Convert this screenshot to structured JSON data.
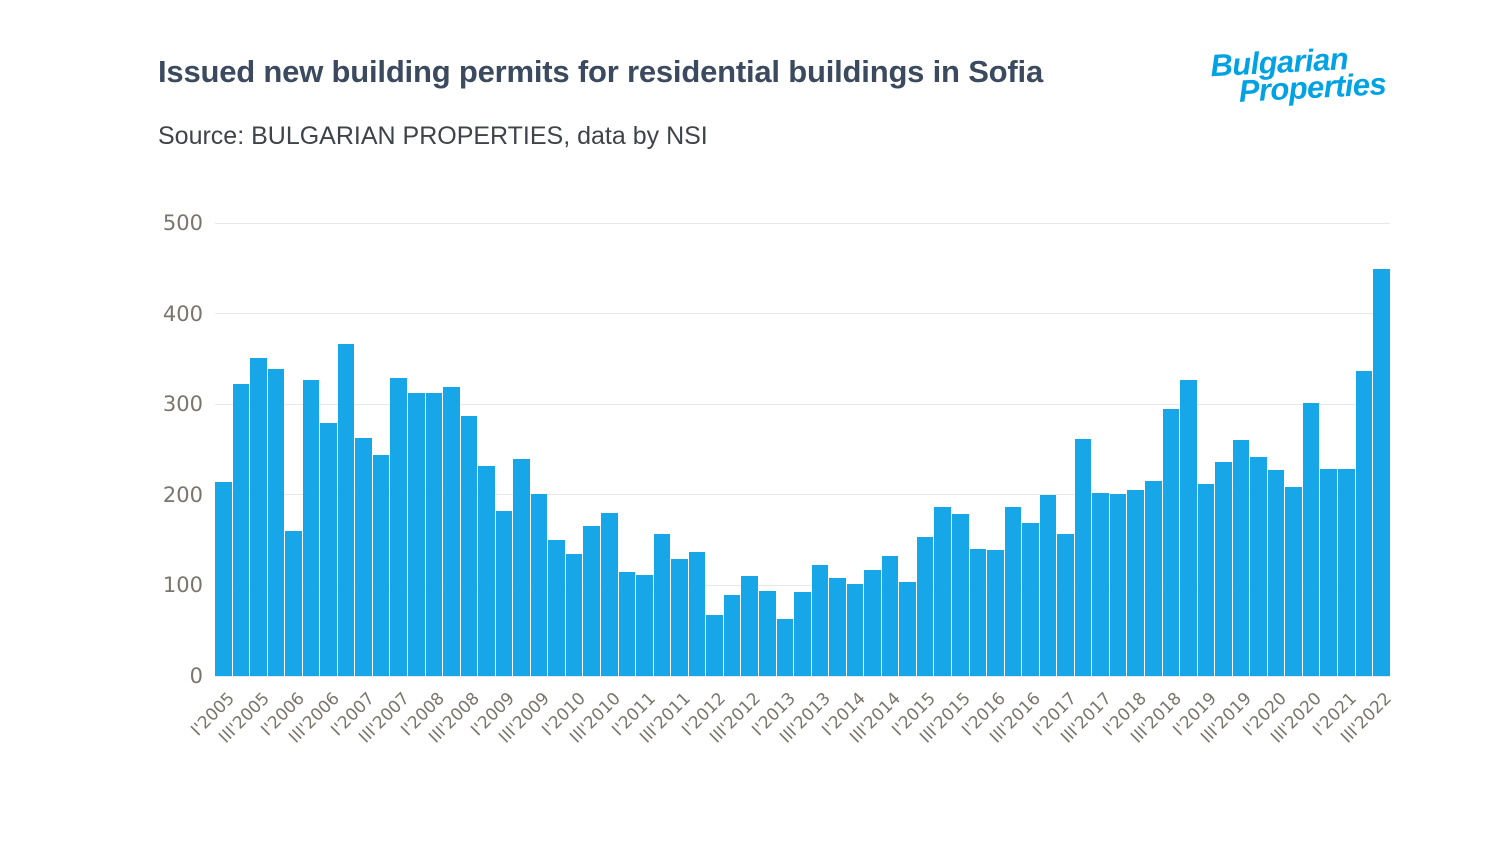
{
  "header": {
    "title": "Issued new building permits for residential buildings in Sofia",
    "source": "Source: BULGARIAN PROPERTIES, data by NSI",
    "logo": {
      "line1": "Bulgarian",
      "line2": "Properties",
      "color": "#00a2e4"
    }
  },
  "chart_data": {
    "type": "bar",
    "title": "Issued new building permits for residential buildings in Sofia",
    "bar_color": "#17a6e8",
    "grid": true,
    "gridline_color": "#e8e8e8",
    "tick_color": "#7b756c",
    "ylim": [
      0,
      500
    ],
    "yticks": [
      0,
      100,
      200,
      300,
      400,
      500
    ],
    "x_label_every_n_bars": 2,
    "x_tick_labels": [
      "I'2005",
      "III'2005",
      "I'2006",
      "III'2006",
      "I'2007",
      "III'2007",
      "I'2008",
      "III'2008",
      "I'2009",
      "III'2009",
      "I'2010",
      "III'2010",
      "I'2011",
      "III'2011",
      "I'2012",
      "III'2012",
      "I'2013",
      "III'2013",
      "I'2014",
      "III'2014",
      "I'2015",
      "III'2015",
      "I'2016",
      "III'2016",
      "I'2017",
      "III'2017",
      "I'2018",
      "III'2018",
      "I'2019",
      "III'2019",
      "I'2020",
      "III'2020",
      "I'2021",
      "III'2022"
    ],
    "values": [
      214,
      322,
      351,
      339,
      160,
      327,
      279,
      367,
      263,
      244,
      329,
      312,
      312,
      319,
      287,
      232,
      182,
      240,
      201,
      150,
      135,
      166,
      180,
      115,
      112,
      157,
      129,
      137,
      67,
      89,
      110,
      94,
      63,
      93,
      122,
      108,
      102,
      117,
      133,
      104,
      153,
      186,
      179,
      140,
      139,
      186,
      169,
      200,
      157,
      262,
      202,
      201,
      205,
      215,
      295,
      327,
      212,
      236,
      261,
      242,
      227,
      209,
      301,
      229,
      228,
      337,
      449
    ]
  }
}
